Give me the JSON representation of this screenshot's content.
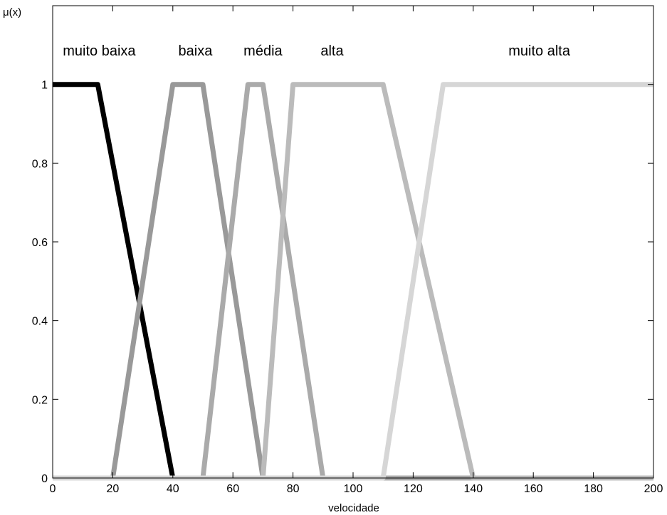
{
  "chart_data": {
    "type": "line",
    "xlabel": "velocidade",
    "ylabel": "μ(x)",
    "xlim": [
      0,
      200
    ],
    "ylim": [
      0,
      1.2
    ],
    "xticks": [
      0,
      20,
      40,
      60,
      80,
      100,
      120,
      140,
      160,
      180,
      200
    ],
    "yticks": [
      0,
      0.2,
      0.4,
      0.6,
      0.8,
      1
    ],
    "grid": false,
    "series": [
      {
        "name": "muito baixa",
        "color": "#000000",
        "label_x": 15.5,
        "x": [
          0,
          15,
          40,
          200
        ],
        "y": [
          1,
          1,
          0,
          0
        ]
      },
      {
        "name": "baixa",
        "color": "#999999",
        "label_x": 47.5,
        "x": [
          0,
          20,
          40,
          50,
          70,
          200
        ],
        "y": [
          0,
          0,
          1,
          1,
          0,
          0
        ]
      },
      {
        "name": "média",
        "color": "#aaaaaa",
        "label_x": 70,
        "x": [
          0,
          50,
          65,
          70,
          90,
          200
        ],
        "y": [
          0,
          0,
          1,
          1,
          0,
          0
        ]
      },
      {
        "name": "alta",
        "color": "#bbbbbb",
        "label_x": 93,
        "x": [
          0,
          70,
          80,
          110,
          140,
          200
        ],
        "y": [
          0,
          0,
          1,
          1,
          0,
          0
        ]
      },
      {
        "name": "muito alta",
        "color": "#d6d6d6",
        "label_x": 162,
        "x": [
          0,
          110,
          130,
          200
        ],
        "y": [
          0,
          0,
          1,
          1
        ]
      }
    ]
  }
}
